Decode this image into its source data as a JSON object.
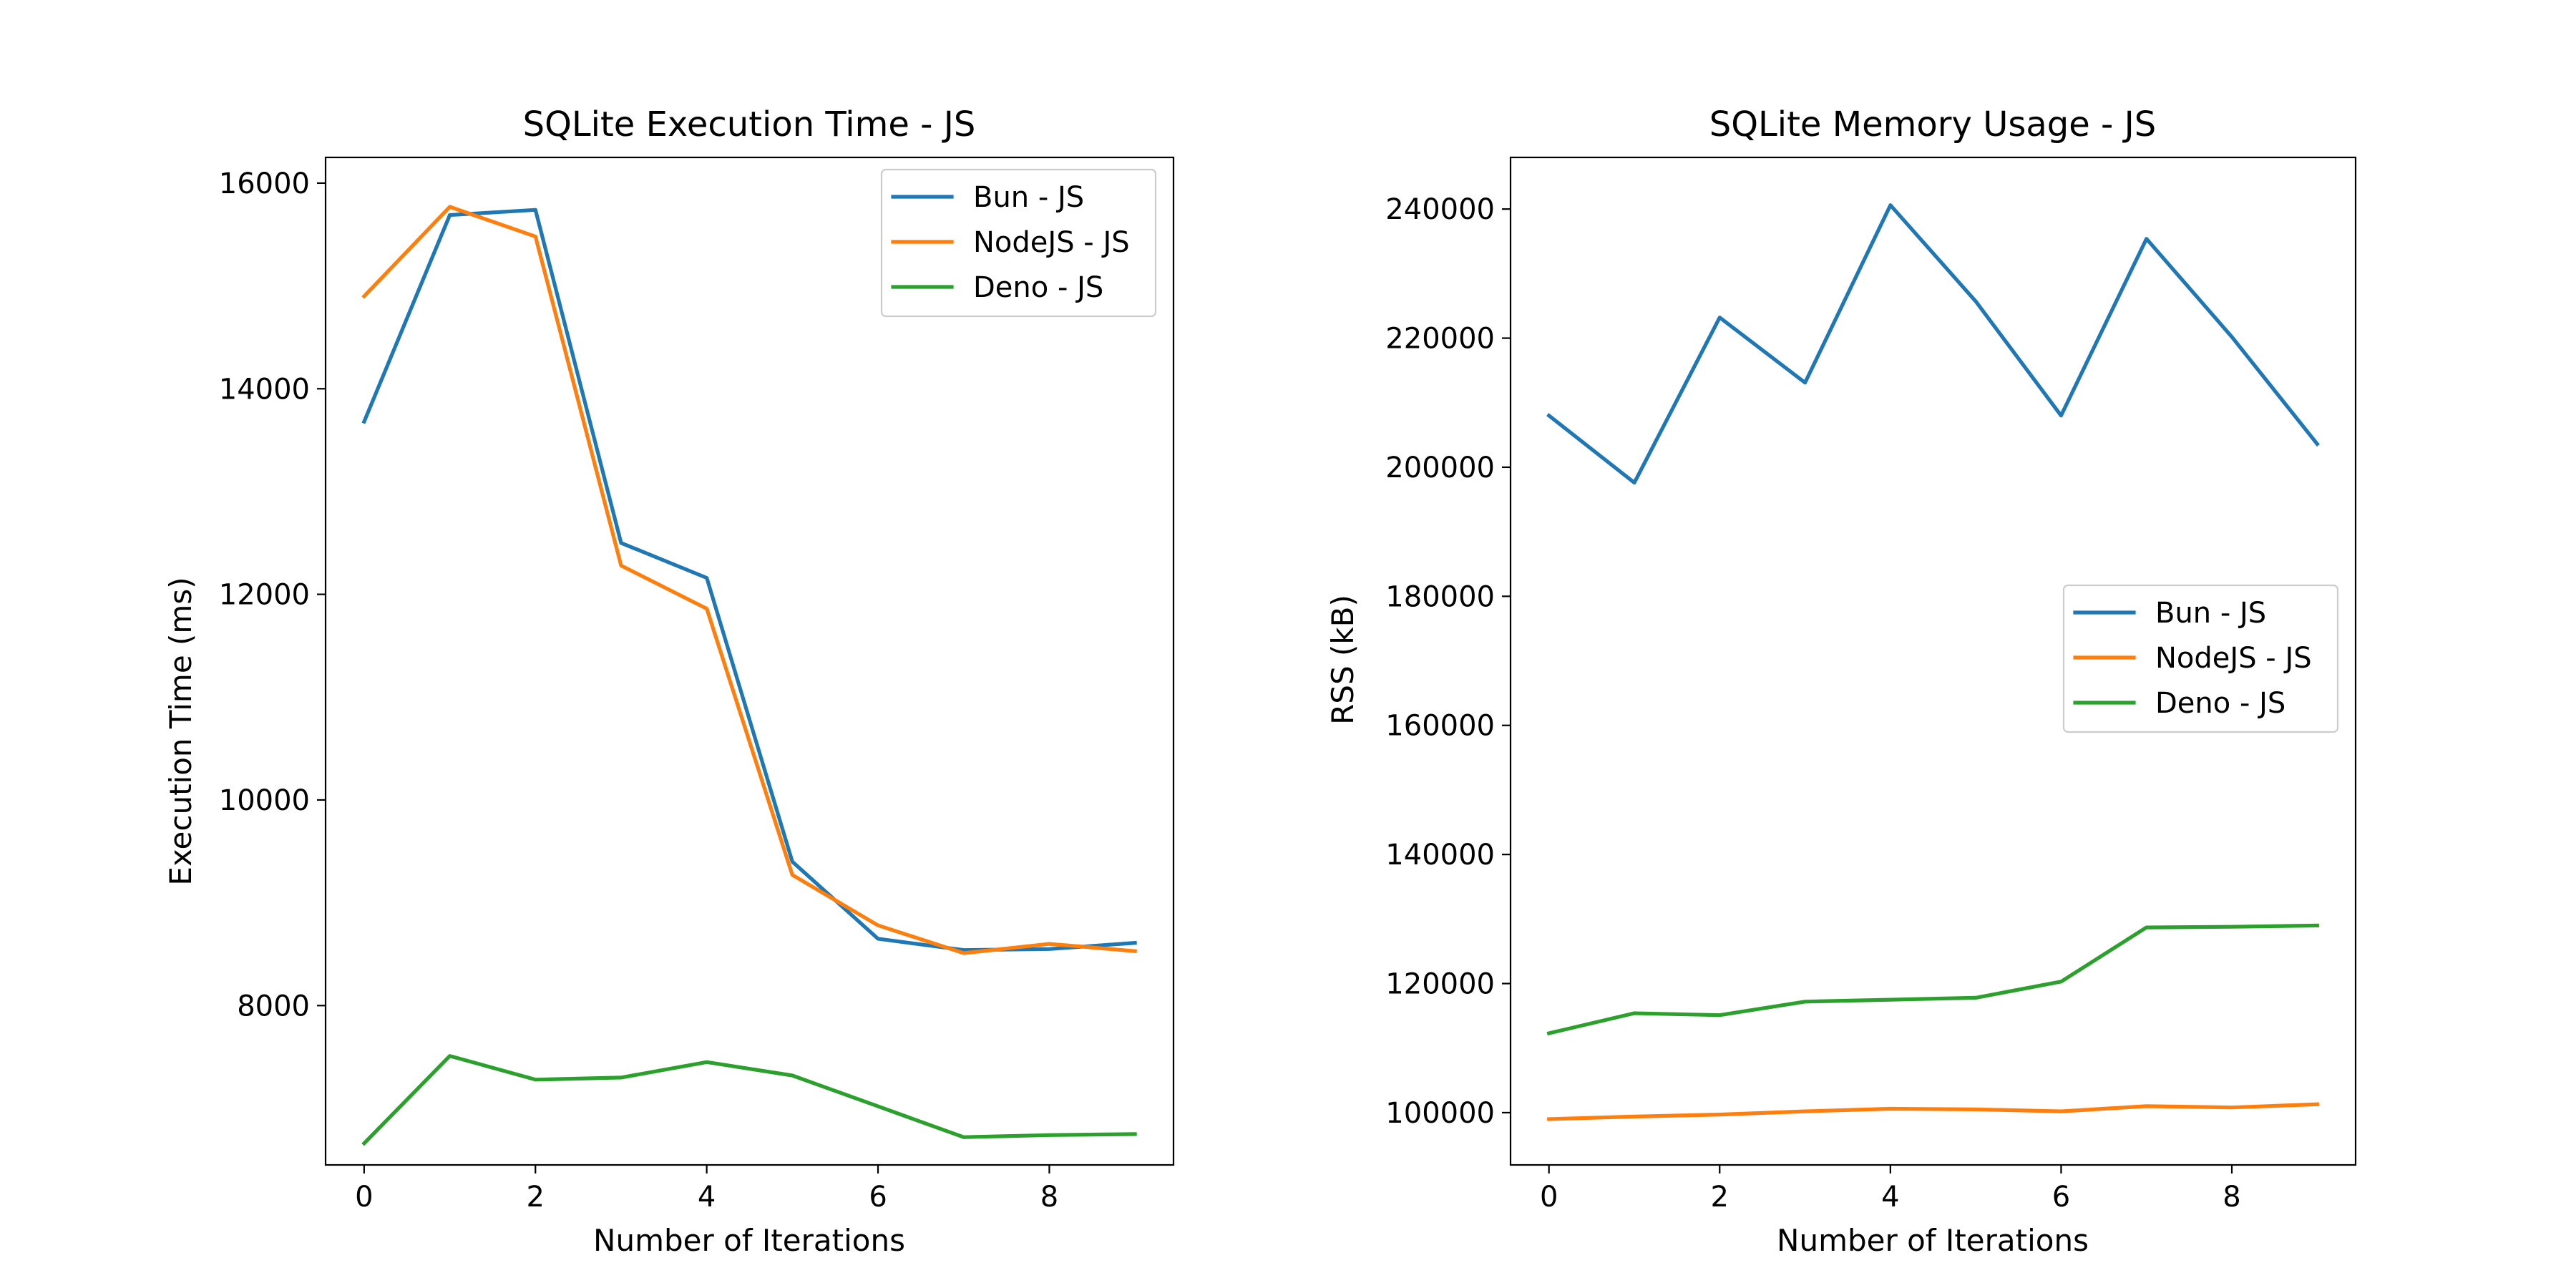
{
  "chart_data": [
    {
      "type": "line",
      "title": "SQLite Execution Time - JS",
      "xlabel": "Number of Iterations",
      "ylabel": "Execution Time (ms)",
      "x": [
        0,
        1,
        2,
        3,
        4,
        5,
        6,
        7,
        8,
        9
      ],
      "xlim": [
        -0.45,
        9.45
      ],
      "ylim": [
        6450,
        16250
      ],
      "xticks": [
        0,
        2,
        4,
        6,
        8
      ],
      "yticks": [
        8000,
        10000,
        12000,
        14000,
        16000
      ],
      "grid": false,
      "legend_position": "top-right",
      "series": [
        {
          "name": "Bun - JS",
          "color": "#1f77b4",
          "values": [
            13680,
            15690,
            15740,
            12500,
            12160,
            9400,
            8650,
            8540,
            8550,
            8610
          ]
        },
        {
          "name": "NodeJS - JS",
          "color": "#ff7f0e",
          "values": [
            14900,
            15770,
            15480,
            12280,
            11860,
            9270,
            8780,
            8510,
            8600,
            8530
          ]
        },
        {
          "name": "Deno - JS",
          "color": "#2ca02c",
          "values": [
            6660,
            7510,
            7280,
            7300,
            7450,
            7320,
            7020,
            6720,
            6740,
            6750
          ]
        }
      ]
    },
    {
      "type": "line",
      "title": "SQLite Memory Usage - JS",
      "xlabel": "Number of Iterations",
      "ylabel": "RSS (kB)",
      "x": [
        0,
        1,
        2,
        3,
        4,
        5,
        6,
        7,
        8,
        9
      ],
      "xlim": [
        -0.45,
        9.45
      ],
      "ylim": [
        91900,
        248000
      ],
      "xticks": [
        0,
        2,
        4,
        6,
        8
      ],
      "yticks": [
        100000,
        120000,
        140000,
        160000,
        180000,
        200000,
        220000,
        240000
      ],
      "grid": false,
      "legend_position": "center-right",
      "series": [
        {
          "name": "Bun - JS",
          "color": "#1f77b4",
          "values": [
            208000,
            197600,
            223200,
            213100,
            240600,
            225700,
            208000,
            235400,
            220200,
            203600
          ]
        },
        {
          "name": "NodeJS - JS",
          "color": "#ff7f0e",
          "values": [
            99000,
            99400,
            99700,
            100200,
            100600,
            100500,
            100200,
            101000,
            100800,
            101300
          ]
        },
        {
          "name": "Deno - JS",
          "color": "#2ca02c",
          "values": [
            112300,
            115400,
            115100,
            117200,
            117500,
            117800,
            120300,
            128700,
            128800,
            129000
          ]
        }
      ]
    }
  ]
}
